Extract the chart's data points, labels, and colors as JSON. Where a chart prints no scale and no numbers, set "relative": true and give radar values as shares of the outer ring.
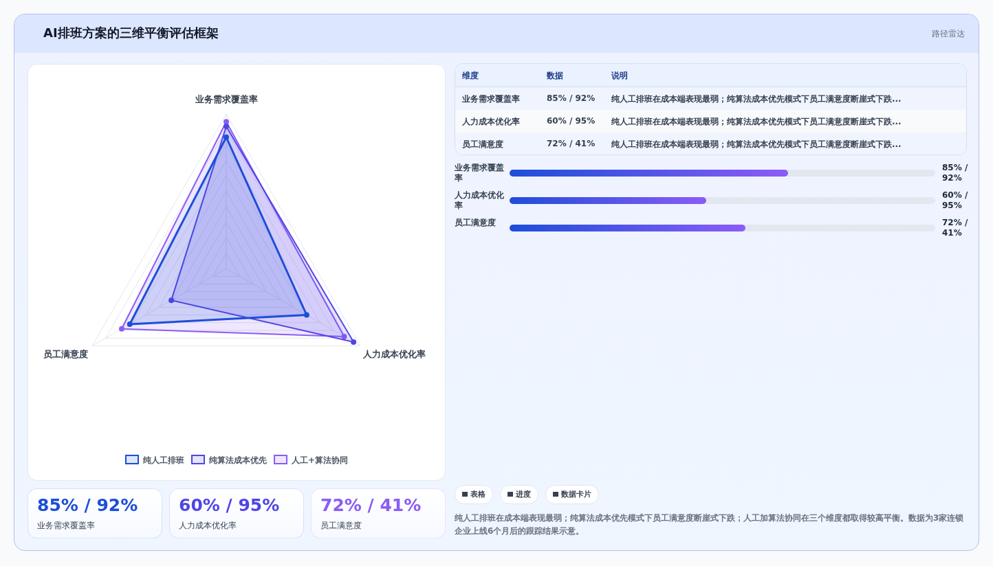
{
  "chart_data": [
    {
      "type": "other",
      "title": "AI排班方案的三维平衡评估框架",
      "subtitle": "路径雷达"
    },
    {
      "type": "radar",
      "categories": [
        "业务需求覆盖率",
        "人力成本优化率",
        "员工满意度"
      ],
      "relative": true,
      "grid": true,
      "legend": "bottom",
      "marker": "circle",
      "series": [
        {
          "name": "纯人工排班",
          "color": "#1d4ed8",
          "values": [
            0.85,
            0.6,
            0.72
          ]
        },
        {
          "name": "纯算法成本优先",
          "color": "#4f46e5",
          "values": [
            0.92,
            0.95,
            0.41
          ]
        },
        {
          "name": "人工+算法协同",
          "color": "#8b5cf6",
          "values": [
            0.95,
            0.88,
            0.78
          ]
        }
      ]
    },
    {
      "type": "other",
      "categories": [
        "业务需求覆盖率",
        "人力成本优化率",
        "员工满意度"
      ],
      "value_labels": [
        "85% / 92%",
        "60% / 95%",
        "72% / 41%"
      ],
      "annotations": [
        "维度",
        "数据",
        "说明",
        "纯人工排班在成本端表现最弱；纯算法成本优先模式下员工满意度断崖式下跌...",
        "纯人工排班在成本端表现最弱；纯算法成本优先模式下员工满意度断崖式下跌...",
        "纯人工排班在成本端表现最弱；纯算法成本优先模式下员工满意度断崖式下跌..."
      ]
    },
    {
      "type": "bar",
      "orientation": "horizontal",
      "xlim": [
        0,
        130
      ],
      "categories": [
        "业务需求覆盖率",
        "人力成本优化率",
        "员工满意度"
      ],
      "values": [
        85,
        60,
        72
      ],
      "value_labels": [
        "85% / 92%",
        "60% / 95%",
        "72% / 41%"
      ]
    },
    {
      "type": "other",
      "categories": [
        "业务需求覆盖率",
        "人力成本优化率",
        "员工满意度"
      ],
      "value_labels": [
        "85% / 92%",
        "60% / 95%",
        "72% / 41%"
      ],
      "colors": [
        "#1d4ed8",
        "#4f46e5",
        "#8b5cf6"
      ]
    },
    {
      "type": "other",
      "annotations": [
        "表格",
        "进度",
        "数据卡片",
        "纯人工排班在成本端表现最弱；纯算法成本优先模式下员工满意度断崖式下跌；人工加算法协同在三个维度都取得较高平衡。数据为3家连锁企业上线6个月后的跟踪结果示意。"
      ]
    }
  ]
}
